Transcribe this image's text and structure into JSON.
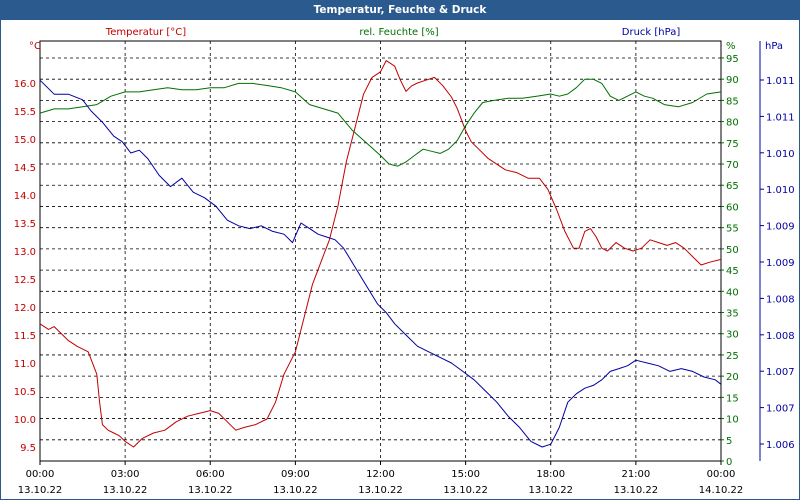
{
  "window": {
    "title": "Temperatur, Feuchte & Druck"
  },
  "chart_data": {
    "type": "line",
    "title": "Temperatur, Feuchte & Druck",
    "grid": true,
    "x_ticks": [
      {
        "hours": 0,
        "time": "00:00",
        "date": "13.10.22"
      },
      {
        "hours": 3,
        "time": "03:00",
        "date": "13.10.22"
      },
      {
        "hours": 6,
        "time": "06:00",
        "date": "13.10.22"
      },
      {
        "hours": 9,
        "time": "09:00",
        "date": "13.10.22"
      },
      {
        "hours": 12,
        "time": "12:00",
        "date": "13.10.22"
      },
      {
        "hours": 15,
        "time": "15:00",
        "date": "13.10.22"
      },
      {
        "hours": 18,
        "time": "18:00",
        "date": "13.10.22"
      },
      {
        "hours": 21,
        "time": "21:00",
        "date": "13.10.22"
      },
      {
        "hours": 24,
        "time": "00:00",
        "date": "14.10.22"
      }
    ],
    "axes": {
      "temperature": {
        "unit": "°C",
        "color": "#c00000",
        "ticks": [
          "16.0",
          "15.5",
          "15.0",
          "14.5",
          "14.0",
          "13.5",
          "13.0",
          "12.5",
          "12.0",
          "11.5",
          "11.0",
          "10.5",
          "10.0",
          "9.5"
        ],
        "ylim": [
          9.25,
          16.75
        ]
      },
      "humidity": {
        "unit": "%",
        "color": "#007000",
        "ticks": [
          "95",
          "90",
          "85",
          "80",
          "75",
          "70",
          "65",
          "60",
          "55",
          "50",
          "45",
          "40",
          "35",
          "30",
          "25",
          "20",
          "15",
          "10",
          "5",
          "0"
        ],
        "ylim": [
          0,
          99
        ]
      },
      "pressure": {
        "unit": "hPa",
        "color": "#0000a0",
        "ticks": [
          "1.011",
          "1.011",
          "1.010",
          "1.010",
          "1.009",
          "1.009",
          "1.008",
          "1.008",
          "1.007",
          "1.007",
          "1.006"
        ]
      }
    },
    "series": [
      {
        "name": "Temperatur [°C]",
        "axis": "temperature",
        "color": "#c00000",
        "x": [
          0,
          0.3,
          0.5,
          0.8,
          1,
          1.3,
          1.7,
          2,
          2.1,
          2.2,
          2.4,
          2.6,
          2.8,
          3,
          3.3,
          3.6,
          4,
          4.4,
          4.8,
          5.2,
          5.6,
          6,
          6.3,
          6.6,
          6.9,
          7.2,
          7.6,
          8,
          8.3,
          8.6,
          9,
          9.3,
          9.6,
          9.9,
          10.2,
          10.5,
          10.8,
          11.1,
          11.4,
          11.7,
          12,
          12.2,
          12.5,
          12.7,
          12.9,
          13.1,
          13.3,
          13.6,
          13.9,
          14.2,
          14.5,
          14.7,
          15,
          15.2,
          15.5,
          15.8,
          16.1,
          16.4,
          16.8,
          17.2,
          17.6,
          17.9,
          18.2,
          18.5,
          18.8,
          19,
          19.2,
          19.4,
          19.6,
          19.8,
          20,
          20.3,
          20.6,
          20.9,
          21.2,
          21.5,
          21.8,
          22.1,
          22.4,
          22.7,
          23,
          23.3,
          23.6,
          24
        ],
        "y": [
          11.7,
          11.6,
          11.65,
          11.5,
          11.4,
          11.3,
          11.2,
          10.8,
          10.3,
          9.9,
          9.8,
          9.75,
          9.7,
          9.6,
          9.5,
          9.65,
          9.75,
          9.8,
          9.95,
          10.05,
          10.1,
          10.15,
          10.1,
          9.95,
          9.8,
          9.85,
          9.9,
          10.0,
          10.3,
          10.8,
          11.2,
          11.8,
          12.4,
          12.8,
          13.2,
          13.8,
          14.6,
          15.2,
          15.8,
          16.1,
          16.2,
          16.4,
          16.3,
          16.05,
          15.85,
          15.95,
          16.0,
          16.05,
          16.1,
          15.95,
          15.75,
          15.55,
          15.15,
          14.95,
          14.8,
          14.65,
          14.55,
          14.45,
          14.4,
          14.3,
          14.3,
          14.1,
          13.75,
          13.35,
          13.05,
          13.05,
          13.35,
          13.4,
          13.25,
          13.05,
          13.0,
          13.15,
          13.05,
          13.0,
          13.05,
          13.2,
          13.15,
          13.1,
          13.15,
          13.05,
          12.9,
          12.75,
          12.8,
          12.85
        ]
      },
      {
        "name": "rel. Feuchte [%]",
        "axis": "humidity",
        "color": "#007000",
        "x": [
          0,
          0.5,
          1,
          1.5,
          2,
          2.5,
          3,
          3.5,
          4,
          4.5,
          5,
          5.5,
          6,
          6.5,
          7,
          7.5,
          8,
          8.5,
          9,
          9.5,
          10,
          10.5,
          11,
          11.5,
          12,
          12.3,
          12.6,
          12.9,
          13.2,
          13.5,
          13.8,
          14.1,
          14.4,
          14.7,
          15,
          15.3,
          15.6,
          16,
          16.5,
          17,
          17.5,
          18,
          18.3,
          18.6,
          18.9,
          19.2,
          19.5,
          19.8,
          20.1,
          20.4,
          20.7,
          21,
          21.3,
          21.6,
          22,
          22.5,
          23,
          23.5,
          24
        ],
        "y": [
          82,
          83,
          83,
          83.5,
          84,
          86,
          87,
          87,
          87.5,
          88,
          87.5,
          87.5,
          88,
          88,
          89,
          89,
          88.5,
          88,
          87,
          84,
          83,
          82,
          78,
          75,
          72,
          70,
          69.5,
          70.5,
          72,
          73.5,
          73,
          72.5,
          73.5,
          75.5,
          79,
          82,
          84.5,
          85,
          85.5,
          85.5,
          86,
          86.5,
          86,
          86.5,
          88,
          90,
          90,
          89,
          86,
          85,
          86,
          87,
          86,
          85.5,
          84,
          83.5,
          84.5,
          86.5,
          87
        ]
      },
      {
        "name": "Druck [hPa]",
        "axis": "pressure",
        "color": "#0000a0",
        "x": [
          0,
          0.2,
          0.5,
          1,
          1.5,
          1.8,
          2.2,
          2.6,
          2.9,
          3.2,
          3.5,
          3.8,
          4.2,
          4.6,
          5,
          5.4,
          5.8,
          6.2,
          6.6,
          7,
          7.4,
          7.8,
          8.2,
          8.6,
          8.9,
          9.2,
          9.5,
          9.8,
          10.1,
          10.4,
          10.7,
          11,
          11.3,
          11.6,
          11.9,
          12.2,
          12.5,
          12.9,
          13.3,
          13.7,
          14.1,
          14.5,
          14.9,
          15.3,
          15.7,
          16.1,
          16.5,
          16.9,
          17.3,
          17.7,
          18,
          18.3,
          18.6,
          18.9,
          19.2,
          19.5,
          19.8,
          20.1,
          20.4,
          20.7,
          21,
          21.4,
          21.8,
          22.2,
          22.6,
          23,
          23.4,
          23.8,
          24
        ],
        "y": [
          16.05,
          15.95,
          15.8,
          15.8,
          15.7,
          15.5,
          15.3,
          15.05,
          14.95,
          14.75,
          14.8,
          14.65,
          14.35,
          14.15,
          14.3,
          14.05,
          13.95,
          13.8,
          13.55,
          13.45,
          13.4,
          13.45,
          13.35,
          13.3,
          13.15,
          13.5,
          13.4,
          13.3,
          13.25,
          13.2,
          13.05,
          12.8,
          12.55,
          12.3,
          12.05,
          11.9,
          11.7,
          11.5,
          11.3,
          11.2,
          11.1,
          11.0,
          10.85,
          10.7,
          10.5,
          10.3,
          10.05,
          9.85,
          9.6,
          9.5,
          9.55,
          9.85,
          10.3,
          10.45,
          10.55,
          10.6,
          10.7,
          10.85,
          10.9,
          10.95,
          11.05,
          11.0,
          10.95,
          10.85,
          10.9,
          10.85,
          10.75,
          10.7,
          10.62
        ]
      }
    ]
  }
}
